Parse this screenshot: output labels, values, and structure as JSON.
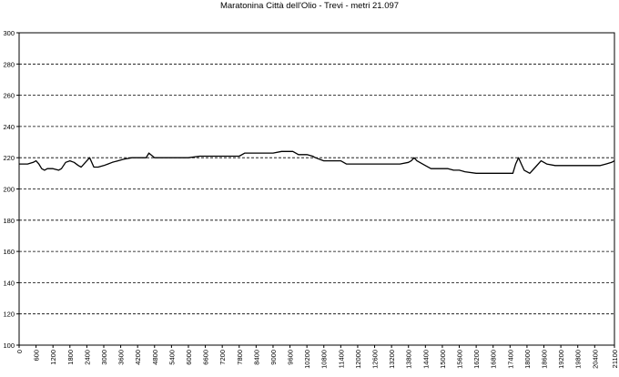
{
  "chart_data": {
    "type": "line",
    "title": "Maratonina Città dell'Olio - Trevi - metri 21.097",
    "xlabel": "",
    "ylabel": "",
    "ylim": [
      100,
      300
    ],
    "yticks": [
      100,
      120,
      140,
      160,
      180,
      200,
      220,
      240,
      260,
      280,
      300
    ],
    "xlim": [
      0,
      21100
    ],
    "xticks": [
      0,
      600,
      1200,
      1800,
      2400,
      3000,
      3600,
      4200,
      4800,
      5400,
      6000,
      6600,
      7200,
      7800,
      8400,
      9000,
      9600,
      10200,
      10800,
      11400,
      12000,
      12600,
      13200,
      13800,
      14400,
      15000,
      15600,
      16200,
      16800,
      17400,
      18000,
      18600,
      19200,
      19800,
      20400,
      21100
    ],
    "grid": "horizontal dashed",
    "legend": "none",
    "line_color": "#000000",
    "series": [
      {
        "x": [
          0,
          300,
          500,
          600,
          700,
          800,
          900,
          1000,
          1200,
          1400,
          1500,
          1650,
          1800,
          1950,
          2100,
          2200,
          2350,
          2500,
          2650,
          2800,
          3000,
          3150,
          3300,
          3500,
          3700,
          4000,
          4200,
          4500,
          4600,
          4800,
          5000,
          5400,
          6000,
          6400,
          6600,
          7200,
          7800,
          8000,
          8400,
          9000,
          9300,
          9600,
          9700,
          9900,
          10200,
          10400,
          10500,
          10800,
          11400,
          11600,
          12000,
          12600,
          13200,
          13500,
          13800,
          13900,
          14000,
          14100,
          14300,
          14400,
          14600,
          15000,
          15200,
          15400,
          15600,
          15800,
          16200,
          16800,
          17400,
          17500,
          17600,
          17700,
          17800,
          17900,
          18100,
          18300,
          18500,
          18700,
          19000,
          19200,
          19800,
          20400,
          20600,
          20800,
          21000,
          21100
        ],
        "y": [
          216,
          216,
          217,
          218,
          216,
          213,
          212,
          213,
          213,
          212,
          213,
          217,
          218,
          217,
          215,
          214,
          217,
          220,
          214,
          214,
          215,
          216,
          217,
          218,
          219,
          220,
          220,
          220,
          223,
          220,
          220,
          220,
          220,
          221,
          221,
          221,
          221,
          223,
          223,
          223,
          224,
          224,
          224,
          222,
          222,
          221,
          220,
          218,
          218,
          216,
          216,
          216,
          216,
          216,
          217,
          218,
          220,
          218,
          216,
          215,
          213,
          213,
          213,
          212,
          212,
          211,
          210,
          210,
          210,
          210,
          216,
          220,
          216,
          212,
          210,
          214,
          218,
          216,
          215,
          215,
          215,
          215,
          215,
          216,
          217,
          218
        ]
      }
    ]
  }
}
